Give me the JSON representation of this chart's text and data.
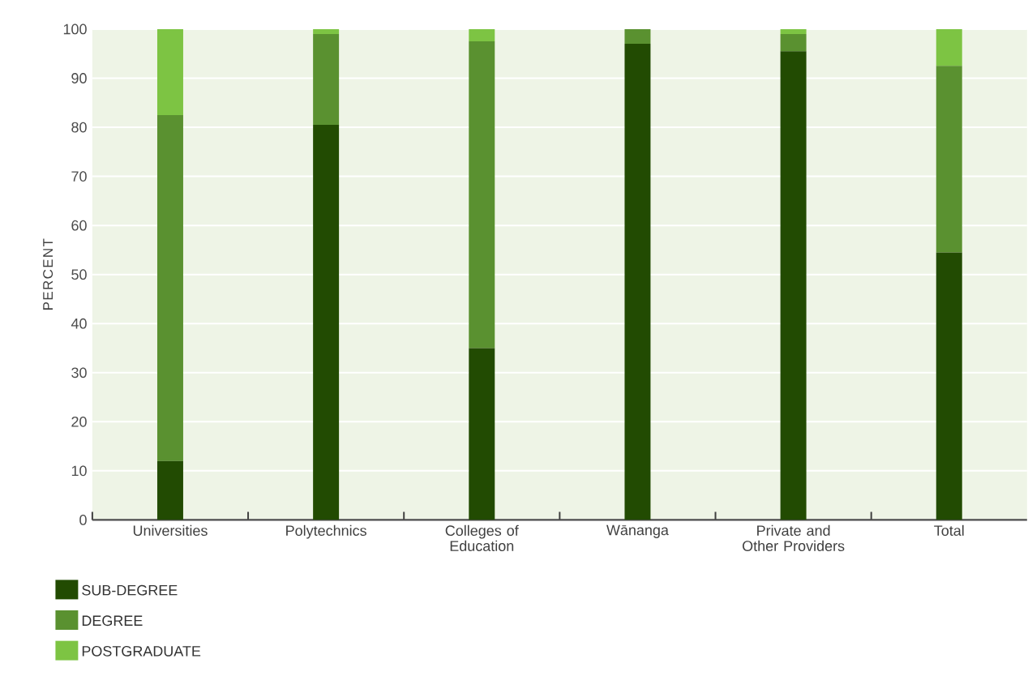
{
  "chart_data": {
    "type": "bar",
    "stacked": true,
    "ylabel": "PERCENT",
    "categories": [
      "Universities",
      "Polytechnics",
      "Colleges of Education",
      "Wānanga",
      "Private and Other Providers",
      "Total"
    ],
    "series": [
      {
        "name": "SUB-DEGREE",
        "color": "#224b02",
        "values": [
          12,
          80.5,
          35,
          97,
          95.5,
          54.5
        ]
      },
      {
        "name": "DEGREE",
        "color": "#5a9130",
        "values": [
          70.5,
          18.5,
          62.5,
          3,
          3.5,
          38
        ]
      },
      {
        "name": "POSTGRADUATE",
        "color": "#7dc443",
        "values": [
          17.5,
          1,
          2.5,
          0,
          1,
          7.5
        ]
      }
    ],
    "ylim": [
      0,
      100
    ],
    "yticks": [
      0,
      10,
      20,
      30,
      40,
      50,
      60,
      70,
      80,
      90,
      100
    ],
    "grid": "y",
    "legend": "bottom left"
  }
}
